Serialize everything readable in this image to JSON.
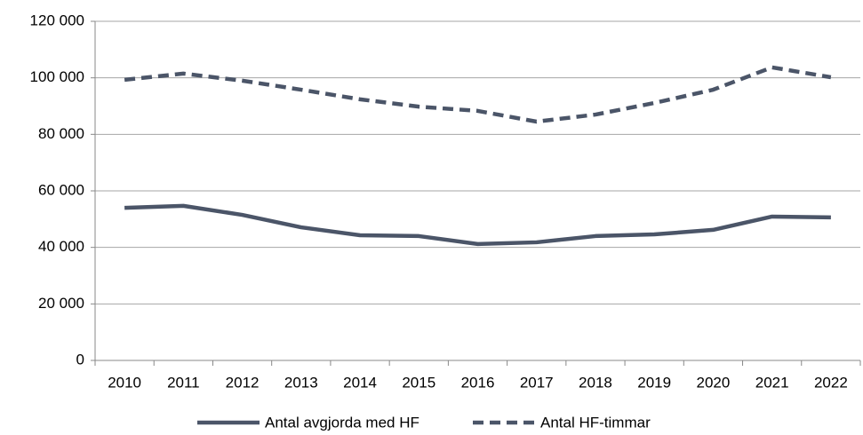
{
  "chart_data": {
    "type": "line",
    "categories": [
      "2010",
      "2011",
      "2012",
      "2013",
      "2014",
      "2015",
      "2016",
      "2017",
      "2018",
      "2019",
      "2020",
      "2021",
      "2022"
    ],
    "series": [
      {
        "name": "Antal avgjorda med HF",
        "color": "#4b5568",
        "dash": false,
        "values": [
          54000,
          54700,
          51500,
          47100,
          44300,
          44000,
          41200,
          41800,
          44000,
          44600,
          46200,
          50900,
          50600
        ]
      },
      {
        "name": "Antal HF-timmar",
        "color": "#4b5568",
        "dash": true,
        "values": [
          99300,
          101500,
          99000,
          95800,
          92400,
          89800,
          88300,
          84500,
          87000,
          91100,
          95800,
          103700,
          100200
        ]
      }
    ],
    "ylim": [
      0,
      120000
    ],
    "yticks": [
      0,
      {
        "value": 20000,
        "label": "20 000"
      },
      {
        "value": 40000,
        "label": "40 000"
      },
      {
        "value": 60000,
        "label": "60 000"
      },
      {
        "value": 80000,
        "label": "80 000"
      },
      {
        "value": 100000,
        "label": "100 000"
      },
      {
        "value": 120000,
        "label": "120 000"
      }
    ],
    "grid": true,
    "legend": "bottom"
  }
}
